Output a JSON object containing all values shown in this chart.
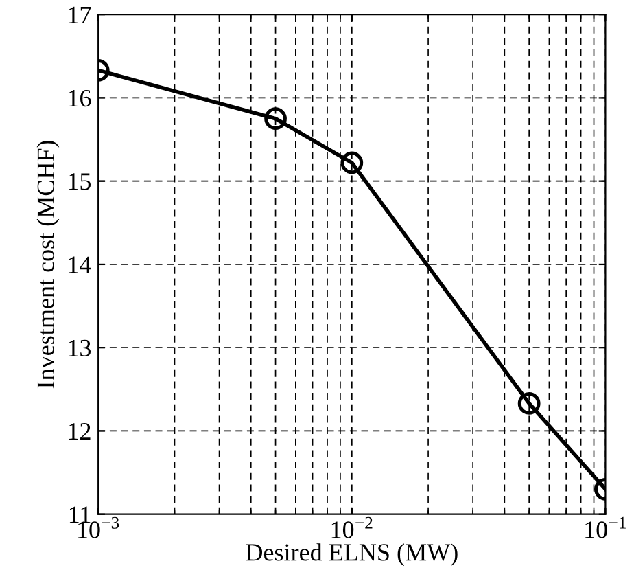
{
  "chart_data": {
    "type": "line",
    "xlabel": "Desired ELNS (MW)",
    "ylabel": "Investment cost (MCHF)",
    "x": [
      0.001,
      0.005,
      0.01,
      0.05,
      0.1
    ],
    "series": [
      {
        "color": "#000000",
        "values": [
          16.33,
          15.75,
          15.22,
          12.33,
          11.3
        ]
      }
    ],
    "log": "x",
    "xlim": [
      0.001,
      0.1
    ],
    "ylim": [
      11,
      17
    ],
    "xticks": [
      {
        "value": 0.001,
        "label": "10$^{−3}$"
      },
      {
        "value": 0.01,
        "label": "10$^{−2}$"
      },
      {
        "value": 0.1,
        "label": "10$^{−1}$"
      }
    ],
    "yticks": [
      11,
      12,
      13,
      14,
      15,
      16,
      17
    ],
    "grid": true,
    "marker": "circle",
    "line_style": "solid"
  }
}
